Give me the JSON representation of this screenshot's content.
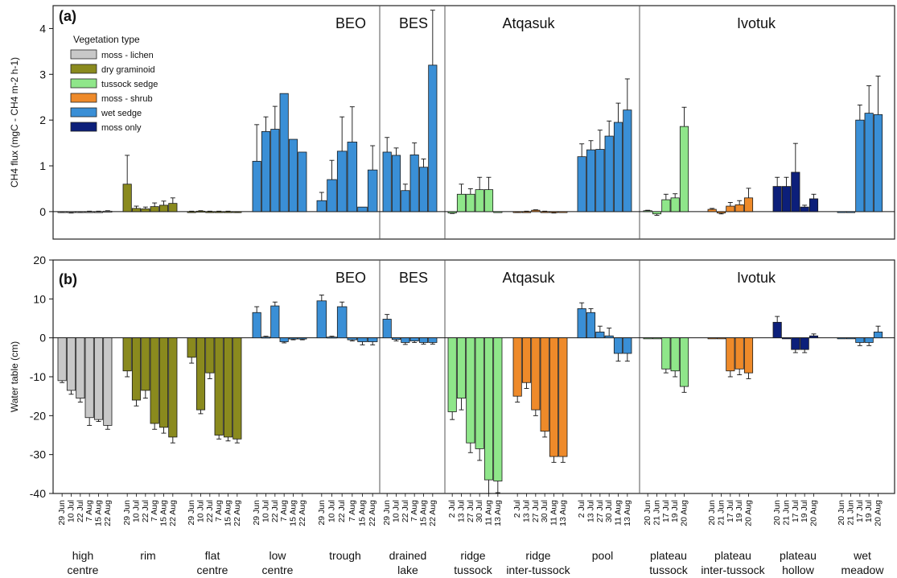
{
  "chart_data": [
    {
      "panel": "(a)",
      "type": "bar",
      "ylabel": "CH4 flux (mgC - CH4 m-2 h-1)",
      "ylim": [
        -0.6,
        4.5
      ],
      "yticks": [
        0,
        1,
        2,
        3,
        4
      ],
      "regions": [
        "BEO",
        "BES",
        "Atqasuk",
        "Ivotuk"
      ],
      "legend": {
        "title": "Vegetation type",
        "placement": "top-left",
        "entries": [
          {
            "name": "moss - lichen",
            "color": "#c8c8c8"
          },
          {
            "name": "dry graminoid",
            "color": "#8a8a1e"
          },
          {
            "name": "tussock sedge",
            "color": "#8fe68a"
          },
          {
            "name": "moss - shrub",
            "color": "#ee8a2a"
          },
          {
            "name": "wet sedge",
            "color": "#3a8fd6"
          },
          {
            "name": "moss only",
            "color": "#0c1f7a"
          }
        ]
      },
      "groups": [
        {
          "region": "BEO",
          "label": [
            "high",
            "centre"
          ],
          "veg": "moss - lichen",
          "dates": [
            "29 Jun",
            "10 Jul",
            "22 Jul",
            "7 Aug",
            "15 Aug",
            "22 Aug"
          ],
          "values": [
            -0.01,
            -0.02,
            -0.01,
            0.0,
            0.0,
            0.01
          ],
          "errors": [
            0.01,
            0.01,
            0.01,
            0.01,
            0.01,
            0.01
          ]
        },
        {
          "region": "BEO",
          "label": [
            "rim"
          ],
          "veg": "dry graminoid",
          "dates": [
            "29 Jun",
            "10 Jul",
            "22 Jul",
            "7 Aug",
            "15 Aug",
            "22 Aug"
          ],
          "values": [
            0.6,
            0.07,
            0.06,
            0.11,
            0.14,
            0.18
          ],
          "errors": [
            0.63,
            0.05,
            0.04,
            0.08,
            0.09,
            0.12
          ]
        },
        {
          "region": "BEO",
          "label": [
            "flat",
            "centre"
          ],
          "veg": "dry graminoid",
          "dates": [
            "29 Jun",
            "10 Jul",
            "22 Jul",
            "7 Aug",
            "15 Aug",
            "22 Aug"
          ],
          "values": [
            0.0,
            0.01,
            0.0,
            0.0,
            0.0,
            -0.01
          ],
          "errors": [
            0.01,
            0.01,
            0.01,
            0.01,
            0.01,
            0.01
          ]
        },
        {
          "region": "BEO",
          "label": [
            "low",
            "centre"
          ],
          "veg": "wet sedge",
          "dates": [
            "29 Jun",
            "10 Jul",
            "22 Jul",
            "7 Aug",
            "15 Aug",
            "22 Aug"
          ],
          "values": [
            1.1,
            1.75,
            1.8,
            2.58,
            1.58,
            1.3
          ],
          "errors": [
            0.8,
            0.32,
            0.5,
            0.0,
            0.0,
            0.0
          ]
        },
        {
          "region": "BEO",
          "label": [
            "trough"
          ],
          "veg": "wet sedge",
          "dates": [
            "29 Jun",
            "10 Jul",
            "22 Jul",
            "7 Aug",
            "15 Aug",
            "22 Aug"
          ],
          "values": [
            0.24,
            0.7,
            1.32,
            1.52,
            0.1,
            0.91
          ],
          "errors": [
            0.18,
            0.42,
            0.75,
            0.77,
            0.0,
            0.53
          ]
        },
        {
          "region": "BES",
          "label": [
            "drained",
            "lake"
          ],
          "veg": "wet sedge",
          "dates": [
            "29 Jun",
            "10 Jul",
            "22 Jul",
            "7 Aug",
            "15 Aug",
            "22 Aug"
          ],
          "values": [
            1.3,
            1.23,
            0.46,
            1.24,
            0.97,
            3.2
          ],
          "errors": [
            0.32,
            0.16,
            0.14,
            0.26,
            0.18,
            1.2
          ]
        },
        {
          "region": "Atqasuk",
          "label": [
            "ridge",
            "tussock"
          ],
          "veg": "tussock sedge",
          "dates": [
            "2 Jul",
            "13 Jul",
            "27 Jul",
            "30 Jul",
            "11 Aug",
            "13 Aug"
          ],
          "values": [
            -0.03,
            0.38,
            0.38,
            0.48,
            0.48,
            0.0
          ],
          "errors": [
            0.01,
            0.22,
            0.12,
            0.27,
            0.27,
            0.0
          ]
        },
        {
          "region": "Atqasuk",
          "label": [
            "ridge",
            "inter-tussock"
          ],
          "veg": "moss - shrub",
          "dates": [
            "2 Jul",
            "13 Jul",
            "27 Jul",
            "30 Jul",
            "11 Aug",
            "13 Aug"
          ],
          "values": [
            -0.01,
            0.0,
            0.03,
            0.0,
            -0.02,
            0.0
          ],
          "errors": [
            0.01,
            0.01,
            0.01,
            0.01,
            0.01,
            0.0
          ]
        },
        {
          "region": "Atqasuk",
          "label": [
            "pool"
          ],
          "veg": "wet sedge",
          "dates": [
            "2 Jul",
            "13 Jul",
            "27 Jul",
            "30 Jul",
            "11 Aug",
            "13 Aug"
          ],
          "values": [
            1.2,
            1.35,
            1.36,
            1.65,
            1.95,
            2.22
          ],
          "errors": [
            0.28,
            0.2,
            0.42,
            0.33,
            0.42,
            0.68
          ]
        },
        {
          "region": "Ivotuk",
          "label": [
            "plateau",
            "tussock"
          ],
          "veg": "tussock sedge",
          "dates": [
            "20 Jun",
            "21 Jun",
            "17 Jul",
            "19 Jul",
            "20 Aug"
          ],
          "values": [
            0.02,
            -0.05,
            0.26,
            0.3,
            1.86
          ],
          "errors": [
            0.01,
            0.03,
            0.12,
            0.09,
            0.42
          ]
        },
        {
          "region": "Ivotuk",
          "label": [
            "plateau",
            "inter-tussock"
          ],
          "veg": "moss - shrub",
          "dates": [
            "20 Jun",
            "21 Jun",
            "17 Jul",
            "19 Jul",
            "20 Aug"
          ],
          "values": [
            0.05,
            -0.03,
            0.12,
            0.15,
            0.3
          ],
          "errors": [
            0.02,
            0.02,
            0.08,
            0.09,
            0.21
          ]
        },
        {
          "region": "Ivotuk",
          "label": [
            "plateau",
            "hollow"
          ],
          "veg": "moss only",
          "dates": [
            "20 Jun",
            "21 Jun",
            "17 Jul",
            "19 Jul",
            "20 Aug"
          ],
          "values": [
            0.55,
            0.55,
            0.86,
            0.1,
            0.28
          ],
          "errors": [
            0.2,
            0.2,
            0.63,
            0.04,
            0.1
          ]
        },
        {
          "region": "Ivotuk",
          "label": [
            "wet",
            "meadow"
          ],
          "veg": "wet sedge",
          "dates": [
            "20 Jun",
            "21 Jun",
            "17 Jul",
            "19 Jul",
            "20 Aug"
          ],
          "values": [
            0.0,
            0.0,
            2.0,
            2.15,
            2.12
          ],
          "errors": [
            0.0,
            0.0,
            0.33,
            0.6,
            0.84
          ]
        }
      ]
    },
    {
      "panel": "(b)",
      "type": "bar",
      "ylabel": "Water table (cm)",
      "ylim": [
        -40,
        20
      ],
      "yticks": [
        20,
        10,
        0,
        -10,
        -20,
        -30,
        -40
      ],
      "regions": [
        "BEO",
        "BES",
        "Atqasuk",
        "Ivotuk"
      ],
      "groups": [
        {
          "region": "BEO",
          "label": [
            "high",
            "centre"
          ],
          "veg": "moss - lichen",
          "dates": [
            "29 Jun",
            "10 Jul",
            "22 Jul",
            "7 Aug",
            "15 Aug",
            "22 Aug"
          ],
          "values": [
            -11,
            -13.5,
            -15.5,
            -20.5,
            -21,
            -22.5
          ],
          "errors": [
            0.5,
            1,
            1,
            2,
            0.5,
            1
          ]
        },
        {
          "region": "BEO",
          "label": [
            "rim"
          ],
          "veg": "dry graminoid",
          "dates": [
            "29 Jun",
            "10 Jul",
            "22 Jul",
            "7 Aug",
            "15 Aug",
            "22 Aug"
          ],
          "values": [
            -8.5,
            -16,
            -13.5,
            -22,
            -23,
            -25.5
          ],
          "errors": [
            1.5,
            1.5,
            2,
            1.5,
            1.5,
            1.5
          ]
        },
        {
          "region": "BEO",
          "label": [
            "flat",
            "centre"
          ],
          "veg": "dry graminoid",
          "dates": [
            "29 Jun",
            "10 Jul",
            "22 Jul",
            "7 Aug",
            "15 Aug",
            "22 Aug"
          ],
          "values": [
            -5,
            -18.5,
            -9,
            -25,
            -25.5,
            -26
          ],
          "errors": [
            1.5,
            1,
            1.5,
            1,
            1,
            1
          ]
        },
        {
          "region": "BEO",
          "label": [
            "low",
            "centre"
          ],
          "veg": "wet sedge",
          "dates": [
            "29 Jun",
            "10 Jul",
            "22 Jul",
            "7 Aug",
            "15 Aug",
            "22 Aug"
          ],
          "values": [
            6.5,
            0.2,
            8.2,
            -1,
            -0.3,
            -0.3
          ],
          "errors": [
            1.5,
            0.2,
            1,
            0.3,
            0.2,
            0.2
          ]
        },
        {
          "region": "BEO",
          "label": [
            "trough"
          ],
          "veg": "wet sedge",
          "dates": [
            "29 Jun",
            "10 Jul",
            "22 Jul",
            "7 Aug",
            "15 Aug",
            "22 Aug"
          ],
          "values": [
            9.5,
            0.2,
            8,
            -0.5,
            -1,
            -1
          ],
          "errors": [
            1.5,
            0.2,
            1.2,
            0.3,
            0.8,
            0.8
          ]
        },
        {
          "region": "BES",
          "label": [
            "drained",
            "lake"
          ],
          "veg": "wet sedge",
          "dates": [
            "29 Jun",
            "10 Jul",
            "22 Jul",
            "7 Aug",
            "15 Aug",
            "22 Aug"
          ],
          "values": [
            4.8,
            -0.4,
            -1.2,
            -0.8,
            -1.2,
            -1.2
          ],
          "errors": [
            1.2,
            0.4,
            0.5,
            0.4,
            0.4,
            0.4
          ]
        },
        {
          "region": "Atqasuk",
          "label": [
            "ridge",
            "tussock"
          ],
          "veg": "tussock sedge",
          "dates": [
            "2 Jul",
            "13 Jul",
            "27 Jul",
            "30 Jul",
            "11 Aug",
            "13 Aug"
          ],
          "values": [
            -19,
            -15.5,
            -27,
            -28.5,
            -36.5,
            -36.8
          ],
          "errors": [
            2,
            3,
            2.5,
            3,
            3.5,
            3
          ]
        },
        {
          "region": "Atqasuk",
          "label": [
            "ridge",
            "inter-tussock"
          ],
          "veg": "moss - shrub",
          "dates": [
            "2 Jul",
            "13 Jul",
            "27 Jul",
            "30 Jul",
            "11 Aug",
            "13 Aug"
          ],
          "values": [
            -15,
            -11.5,
            -18.5,
            -24,
            -30.5,
            -30.5
          ],
          "errors": [
            1.5,
            1.5,
            1.5,
            1.5,
            1.5,
            1.5
          ]
        },
        {
          "region": "Atqasuk",
          "label": [
            "pool"
          ],
          "veg": "wet sedge",
          "dates": [
            "2 Jul",
            "13 Jul",
            "27 Jul",
            "30 Jul",
            "11 Aug",
            "13 Aug"
          ],
          "values": [
            7.5,
            6.5,
            1.5,
            0.5,
            -4,
            -4
          ],
          "errors": [
            1.5,
            1,
            1.5,
            2,
            2,
            2
          ]
        },
        {
          "region": "Ivotuk",
          "label": [
            "plateau",
            "tussock"
          ],
          "veg": "tussock sedge",
          "dates": [
            "20 Jun",
            "21 Jun",
            "17 Jul",
            "19 Jul",
            "20 Aug"
          ],
          "values": [
            0,
            0,
            -8,
            -8.5,
            -12.5
          ],
          "errors": [
            0,
            0,
            1,
            1.5,
            1.5
          ]
        },
        {
          "region": "Ivotuk",
          "label": [
            "plateau",
            "inter-tussock"
          ],
          "veg": "moss - shrub",
          "dates": [
            "20 Jun",
            "21 Jun",
            "17 Jul",
            "19 Jul",
            "20 Aug"
          ],
          "values": [
            0,
            0,
            -8.5,
            -8,
            -9
          ],
          "errors": [
            0,
            0,
            1.5,
            1.5,
            1.5
          ]
        },
        {
          "region": "Ivotuk",
          "label": [
            "plateau",
            "hollow"
          ],
          "veg": "moss only",
          "dates": [
            "20 Jun",
            "21 Jun",
            "17 Jul",
            "19 Jul",
            "20 Aug"
          ],
          "values": [
            4,
            0,
            -3,
            -3,
            0.5
          ],
          "errors": [
            1.5,
            0,
            0.8,
            0.8,
            0.5
          ]
        },
        {
          "region": "Ivotuk",
          "label": [
            "wet",
            "meadow"
          ],
          "veg": "wet sedge",
          "dates": [
            "20 Jun",
            "21 Jun",
            "17 Jul",
            "19 Jul",
            "20 Aug"
          ],
          "values": [
            0,
            0,
            -1.2,
            -1.2,
            1.5
          ],
          "errors": [
            0,
            0,
            0.8,
            0.8,
            1.5
          ]
        }
      ]
    }
  ]
}
